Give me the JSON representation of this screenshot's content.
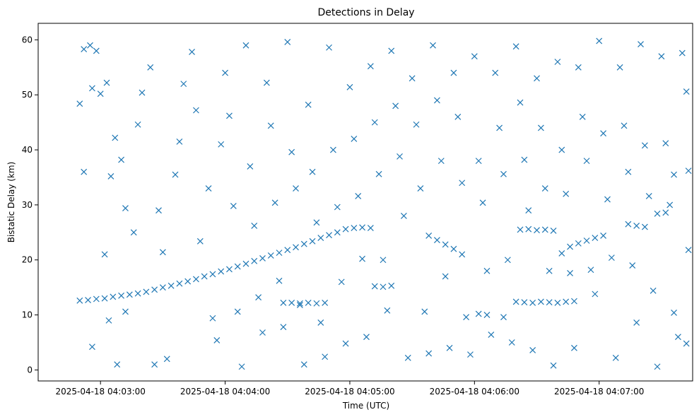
{
  "chart_data": {
    "type": "scatter",
    "title": "Detections in Delay",
    "xlabel": "Time (UTC)",
    "ylabel": "Bistatic Delay (km)",
    "x_ticks": [
      "2025-04-18 04:03:00",
      "2025-04-18 04:04:00",
      "2025-04-18 04:05:00",
      "2025-04-18 04:06:00",
      "2025-04-18 04:07:00"
    ],
    "xlim": [
      "2025-04-18 04:02:30",
      "2025-04-18 04:07:45"
    ],
    "y_ticks": [
      0,
      10,
      20,
      30,
      40,
      50,
      60
    ],
    "ylim": [
      -2,
      63
    ],
    "grid": false,
    "marker": "x",
    "color": "#1f77b4",
    "series": [
      {
        "points": [
          [
            "2025-04-18 04:02:50",
            12.6
          ],
          [
            "2025-04-18 04:02:54",
            12.7
          ],
          [
            "2025-04-18 04:02:58",
            12.9
          ],
          [
            "2025-04-18 04:03:02",
            13.0
          ],
          [
            "2025-04-18 04:03:06",
            13.3
          ],
          [
            "2025-04-18 04:03:10",
            13.5
          ],
          [
            "2025-04-18 04:03:14",
            13.7
          ],
          [
            "2025-04-18 04:03:18",
            13.9
          ],
          [
            "2025-04-18 04:03:22",
            14.2
          ],
          [
            "2025-04-18 04:03:26",
            14.6
          ],
          [
            "2025-04-18 04:03:30",
            15.0
          ],
          [
            "2025-04-18 04:03:34",
            15.3
          ],
          [
            "2025-04-18 04:03:38",
            15.7
          ],
          [
            "2025-04-18 04:03:42",
            16.1
          ],
          [
            "2025-04-18 04:03:46",
            16.5
          ],
          [
            "2025-04-18 04:03:50",
            17.0
          ],
          [
            "2025-04-18 04:03:54",
            17.4
          ],
          [
            "2025-04-18 04:03:58",
            17.9
          ],
          [
            "2025-04-18 04:04:02",
            18.3
          ],
          [
            "2025-04-18 04:04:06",
            18.8
          ],
          [
            "2025-04-18 04:04:10",
            19.3
          ],
          [
            "2025-04-18 04:04:14",
            19.8
          ],
          [
            "2025-04-18 04:04:18",
            20.3
          ],
          [
            "2025-04-18 04:04:22",
            20.8
          ],
          [
            "2025-04-18 04:04:26",
            21.3
          ],
          [
            "2025-04-18 04:04:30",
            21.8
          ],
          [
            "2025-04-18 04:04:34",
            22.3
          ],
          [
            "2025-04-18 04:04:38",
            22.9
          ],
          [
            "2025-04-18 04:04:42",
            23.4
          ],
          [
            "2025-04-18 04:04:46",
            24.0
          ],
          [
            "2025-04-18 04:04:50",
            24.5
          ],
          [
            "2025-04-18 04:04:54",
            25.0
          ],
          [
            "2025-04-18 04:04:58",
            25.6
          ],
          [
            "2025-04-18 04:05:02",
            25.8
          ],
          [
            "2025-04-18 04:05:06",
            25.9
          ],
          [
            "2025-04-18 04:05:10",
            25.8
          ],
          [
            "2025-04-18 04:04:28",
            12.2
          ],
          [
            "2025-04-18 04:04:32",
            12.2
          ],
          [
            "2025-04-18 04:04:36",
            12.1
          ],
          [
            "2025-04-18 04:04:40",
            12.2
          ],
          [
            "2025-04-18 04:04:44",
            12.1
          ],
          [
            "2025-04-18 04:04:48",
            12.2
          ],
          [
            "2025-04-18 04:05:12",
            15.2
          ],
          [
            "2025-04-18 04:05:16",
            15.1
          ],
          [
            "2025-04-18 04:05:20",
            15.3
          ],
          [
            "2025-04-18 04:05:38",
            24.4
          ],
          [
            "2025-04-18 04:05:42",
            23.6
          ],
          [
            "2025-04-18 04:05:46",
            22.8
          ],
          [
            "2025-04-18 04:05:50",
            22.0
          ],
          [
            "2025-04-18 04:05:54",
            21.0
          ],
          [
            "2025-04-18 04:06:02",
            10.2
          ],
          [
            "2025-04-18 04:06:06",
            10.0
          ],
          [
            "2025-04-18 04:06:14",
            9.6
          ],
          [
            "2025-04-18 04:06:20",
            12.4
          ],
          [
            "2025-04-18 04:06:24",
            12.3
          ],
          [
            "2025-04-18 04:06:28",
            12.2
          ],
          [
            "2025-04-18 04:06:32",
            12.4
          ],
          [
            "2025-04-18 04:06:36",
            12.3
          ],
          [
            "2025-04-18 04:06:40",
            12.2
          ],
          [
            "2025-04-18 04:06:44",
            12.4
          ],
          [
            "2025-04-18 04:06:48",
            12.5
          ],
          [
            "2025-04-18 04:06:22",
            25.5
          ],
          [
            "2025-04-18 04:06:26",
            25.6
          ],
          [
            "2025-04-18 04:06:30",
            25.4
          ],
          [
            "2025-04-18 04:06:34",
            25.5
          ],
          [
            "2025-04-18 04:06:38",
            25.3
          ],
          [
            "2025-04-18 04:06:42",
            21.2
          ],
          [
            "2025-04-18 04:06:46",
            22.4
          ],
          [
            "2025-04-18 04:06:50",
            23.0
          ],
          [
            "2025-04-18 04:06:54",
            23.5
          ],
          [
            "2025-04-18 04:06:58",
            24.0
          ],
          [
            "2025-04-18 04:07:02",
            24.4
          ],
          [
            "2025-04-18 04:07:14",
            26.5
          ],
          [
            "2025-04-18 04:07:18",
            26.2
          ],
          [
            "2025-04-18 04:07:22",
            26.0
          ],
          [
            "2025-04-18 04:07:28",
            28.4
          ],
          [
            "2025-04-18 04:07:32",
            28.6
          ],
          [
            "2025-04-18 04:07:36",
            35.5
          ],
          [
            "2025-04-18 04:02:52",
            58.3
          ],
          [
            "2025-04-18 04:02:55",
            59.0
          ],
          [
            "2025-04-18 04:02:58",
            58.0
          ],
          [
            "2025-04-18 04:02:50",
            48.4
          ],
          [
            "2025-04-18 04:02:52",
            36.0
          ],
          [
            "2025-04-18 04:02:56",
            51.2
          ],
          [
            "2025-04-18 04:03:00",
            50.2
          ],
          [
            "2025-04-18 04:03:03",
            52.2
          ],
          [
            "2025-04-18 04:03:05",
            35.2
          ],
          [
            "2025-04-18 04:03:07",
            42.2
          ],
          [
            "2025-04-18 04:03:10",
            38.2
          ],
          [
            "2025-04-18 04:03:12",
            29.4
          ],
          [
            "2025-04-18 04:03:02",
            21.0
          ],
          [
            "2025-04-18 04:02:56",
            4.2
          ],
          [
            "2025-04-18 04:03:04",
            9.0
          ],
          [
            "2025-04-18 04:03:08",
            1.0
          ],
          [
            "2025-04-18 04:03:12",
            10.6
          ],
          [
            "2025-04-18 04:03:16",
            25.0
          ],
          [
            "2025-04-18 04:03:18",
            44.6
          ],
          [
            "2025-04-18 04:03:20",
            50.4
          ],
          [
            "2025-04-18 04:03:24",
            55.0
          ],
          [
            "2025-04-18 04:03:28",
            29.0
          ],
          [
            "2025-04-18 04:03:30",
            21.4
          ],
          [
            "2025-04-18 04:03:26",
            1.0
          ],
          [
            "2025-04-18 04:03:32",
            2.0
          ],
          [
            "2025-04-18 04:03:36",
            35.5
          ],
          [
            "2025-04-18 04:03:38",
            41.5
          ],
          [
            "2025-04-18 04:03:40",
            52.0
          ],
          [
            "2025-04-18 04:03:44",
            57.8
          ],
          [
            "2025-04-18 04:03:46",
            47.2
          ],
          [
            "2025-04-18 04:03:48",
            23.4
          ],
          [
            "2025-04-18 04:03:52",
            33.0
          ],
          [
            "2025-04-18 04:03:54",
            9.4
          ],
          [
            "2025-04-18 04:03:56",
            5.4
          ],
          [
            "2025-04-18 04:03:58",
            41.0
          ],
          [
            "2025-04-18 04:04:00",
            54.0
          ],
          [
            "2025-04-18 04:04:02",
            46.2
          ],
          [
            "2025-04-18 04:04:04",
            29.8
          ],
          [
            "2025-04-18 04:04:06",
            10.6
          ],
          [
            "2025-04-18 04:04:08",
            0.6
          ],
          [
            "2025-04-18 04:04:10",
            59.0
          ],
          [
            "2025-04-18 04:04:12",
            37.0
          ],
          [
            "2025-04-18 04:04:14",
            26.2
          ],
          [
            "2025-04-18 04:04:16",
            13.2
          ],
          [
            "2025-04-18 04:04:18",
            6.8
          ],
          [
            "2025-04-18 04:04:20",
            52.2
          ],
          [
            "2025-04-18 04:04:22",
            44.4
          ],
          [
            "2025-04-18 04:04:24",
            30.4
          ],
          [
            "2025-04-18 04:04:26",
            16.2
          ],
          [
            "2025-04-18 04:04:28",
            7.8
          ],
          [
            "2025-04-18 04:04:30",
            59.6
          ],
          [
            "2025-04-18 04:04:32",
            39.6
          ],
          [
            "2025-04-18 04:04:34",
            33.0
          ],
          [
            "2025-04-18 04:04:36",
            11.8
          ],
          [
            "2025-04-18 04:04:38",
            1.0
          ],
          [
            "2025-04-18 04:04:40",
            48.2
          ],
          [
            "2025-04-18 04:04:42",
            36.0
          ],
          [
            "2025-04-18 04:04:44",
            26.8
          ],
          [
            "2025-04-18 04:04:46",
            8.6
          ],
          [
            "2025-04-18 04:04:48",
            2.4
          ],
          [
            "2025-04-18 04:04:50",
            58.6
          ],
          [
            "2025-04-18 04:04:52",
            40.0
          ],
          [
            "2025-04-18 04:04:54",
            29.6
          ],
          [
            "2025-04-18 04:04:56",
            16.0
          ],
          [
            "2025-04-18 04:04:58",
            4.8
          ],
          [
            "2025-04-18 04:05:00",
            51.4
          ],
          [
            "2025-04-18 04:05:02",
            42.0
          ],
          [
            "2025-04-18 04:05:04",
            31.6
          ],
          [
            "2025-04-18 04:05:06",
            20.2
          ],
          [
            "2025-04-18 04:05:08",
            6.0
          ],
          [
            "2025-04-18 04:05:10",
            55.2
          ],
          [
            "2025-04-18 04:05:12",
            45.0
          ],
          [
            "2025-04-18 04:05:14",
            35.6
          ],
          [
            "2025-04-18 04:05:16",
            20.0
          ],
          [
            "2025-04-18 04:05:18",
            10.8
          ],
          [
            "2025-04-18 04:05:20",
            58.0
          ],
          [
            "2025-04-18 04:05:22",
            48.0
          ],
          [
            "2025-04-18 04:05:24",
            38.8
          ],
          [
            "2025-04-18 04:05:26",
            28.0
          ],
          [
            "2025-04-18 04:05:28",
            2.2
          ],
          [
            "2025-04-18 04:05:30",
            53.0
          ],
          [
            "2025-04-18 04:05:32",
            44.6
          ],
          [
            "2025-04-18 04:05:34",
            33.0
          ],
          [
            "2025-04-18 04:05:36",
            10.6
          ],
          [
            "2025-04-18 04:05:38",
            3.0
          ],
          [
            "2025-04-18 04:05:40",
            59.0
          ],
          [
            "2025-04-18 04:05:42",
            49.0
          ],
          [
            "2025-04-18 04:05:44",
            38.0
          ],
          [
            "2025-04-18 04:05:46",
            17.0
          ],
          [
            "2025-04-18 04:05:48",
            4.0
          ],
          [
            "2025-04-18 04:05:50",
            54.0
          ],
          [
            "2025-04-18 04:05:52",
            46.0
          ],
          [
            "2025-04-18 04:05:54",
            34.0
          ],
          [
            "2025-04-18 04:05:56",
            9.6
          ],
          [
            "2025-04-18 04:05:58",
            2.8
          ],
          [
            "2025-04-18 04:06:00",
            57.0
          ],
          [
            "2025-04-18 04:06:02",
            38.0
          ],
          [
            "2025-04-18 04:06:04",
            30.4
          ],
          [
            "2025-04-18 04:06:06",
            18.0
          ],
          [
            "2025-04-18 04:06:08",
            6.4
          ],
          [
            "2025-04-18 04:06:10",
            54.0
          ],
          [
            "2025-04-18 04:06:12",
            44.0
          ],
          [
            "2025-04-18 04:06:14",
            35.6
          ],
          [
            "2025-04-18 04:06:16",
            20.0
          ],
          [
            "2025-04-18 04:06:18",
            5.0
          ],
          [
            "2025-04-18 04:06:20",
            58.8
          ],
          [
            "2025-04-18 04:06:22",
            48.6
          ],
          [
            "2025-04-18 04:06:24",
            38.2
          ],
          [
            "2025-04-18 04:06:26",
            29.0
          ],
          [
            "2025-04-18 04:06:28",
            3.6
          ],
          [
            "2025-04-18 04:06:30",
            53.0
          ],
          [
            "2025-04-18 04:06:32",
            44.0
          ],
          [
            "2025-04-18 04:06:34",
            33.0
          ],
          [
            "2025-04-18 04:06:36",
            18.0
          ],
          [
            "2025-04-18 04:06:38",
            0.8
          ],
          [
            "2025-04-18 04:06:40",
            56.0
          ],
          [
            "2025-04-18 04:06:42",
            40.0
          ],
          [
            "2025-04-18 04:06:44",
            32.0
          ],
          [
            "2025-04-18 04:06:46",
            17.6
          ],
          [
            "2025-04-18 04:06:48",
            4.0
          ],
          [
            "2025-04-18 04:06:50",
            55.0
          ],
          [
            "2025-04-18 04:06:52",
            46.0
          ],
          [
            "2025-04-18 04:06:54",
            38.0
          ],
          [
            "2025-04-18 04:06:56",
            18.2
          ],
          [
            "2025-04-18 04:06:58",
            13.8
          ],
          [
            "2025-04-18 04:07:00",
            59.8
          ],
          [
            "2025-04-18 04:07:02",
            43.0
          ],
          [
            "2025-04-18 04:07:04",
            31.0
          ],
          [
            "2025-04-18 04:07:06",
            20.4
          ],
          [
            "2025-04-18 04:07:08",
            2.2
          ],
          [
            "2025-04-18 04:07:10",
            55.0
          ],
          [
            "2025-04-18 04:07:12",
            44.4
          ],
          [
            "2025-04-18 04:07:14",
            36.0
          ],
          [
            "2025-04-18 04:07:16",
            19.0
          ],
          [
            "2025-04-18 04:07:18",
            8.6
          ],
          [
            "2025-04-18 04:07:20",
            59.2
          ],
          [
            "2025-04-18 04:07:22",
            40.8
          ],
          [
            "2025-04-18 04:07:24",
            31.6
          ],
          [
            "2025-04-18 04:07:26",
            14.4
          ],
          [
            "2025-04-18 04:07:28",
            0.6
          ],
          [
            "2025-04-18 04:07:30",
            57.0
          ],
          [
            "2025-04-18 04:07:32",
            41.2
          ],
          [
            "2025-04-18 04:07:34",
            30.0
          ],
          [
            "2025-04-18 04:07:36",
            10.4
          ],
          [
            "2025-04-18 04:07:38",
            6.0
          ],
          [
            "2025-04-18 04:07:40",
            57.6
          ],
          [
            "2025-04-18 04:07:42",
            50.6
          ],
          [
            "2025-04-18 04:07:43",
            36.2
          ],
          [
            "2025-04-18 04:07:43",
            21.8
          ],
          [
            "2025-04-18 04:07:42",
            4.8
          ]
        ]
      }
    ]
  }
}
